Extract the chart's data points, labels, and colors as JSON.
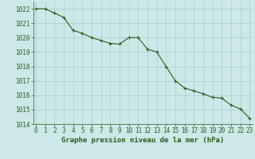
{
  "x": [
    0,
    1,
    2,
    3,
    4,
    5,
    6,
    7,
    8,
    9,
    10,
    11,
    12,
    13,
    14,
    15,
    16,
    17,
    18,
    19,
    20,
    21,
    22,
    23
  ],
  "y": [
    1022.0,
    1022.0,
    1021.7,
    1021.4,
    1020.5,
    1020.3,
    1020.0,
    1019.8,
    1019.6,
    1019.55,
    1020.0,
    1020.0,
    1019.2,
    1019.0,
    1018.0,
    1017.0,
    1016.5,
    1016.3,
    1016.1,
    1015.85,
    1015.8,
    1015.3,
    1015.05,
    1014.4
  ],
  "xlabel": "Graphe pression niveau de la mer (hPa)",
  "ylim": [
    1014,
    1022.5
  ],
  "yticks": [
    1014,
    1015,
    1016,
    1017,
    1018,
    1019,
    1020,
    1021,
    1022
  ],
  "xticks": [
    0,
    1,
    2,
    3,
    4,
    5,
    6,
    7,
    8,
    9,
    10,
    11,
    12,
    13,
    14,
    15,
    16,
    17,
    18,
    19,
    20,
    21,
    22,
    23
  ],
  "line_color": "#2d5a1b",
  "marker_color": "#2d5a1b",
  "bg_color": "#cce8e8",
  "grid_color": "#aacccc",
  "xlabel_color": "#2d5a1b",
  "tick_color": "#2d5a1b",
  "spine_color": "#2d5a1b",
  "xlabel_fontsize": 6.5,
  "tick_fontsize": 5.5
}
